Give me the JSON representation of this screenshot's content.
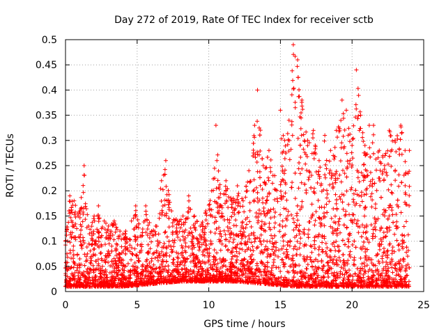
{
  "chart_data": {
    "type": "scatter",
    "title": "Day 272 of 2019, Rate Of TEC Index for receiver sctb",
    "xlabel": "GPS time / hours",
    "ylabel": "ROTI / TECUs",
    "xlim": [
      0,
      25
    ],
    "ylim": [
      0,
      0.5
    ],
    "xticks": [
      0,
      5,
      10,
      15,
      20,
      25
    ],
    "xtick_labels": [
      "0",
      "5",
      "10",
      "15",
      "20",
      "25"
    ],
    "yticks": [
      0,
      0.05,
      0.1,
      0.15,
      0.2,
      0.25,
      0.3,
      0.35,
      0.4,
      0.45,
      0.5
    ],
    "ytick_labels": [
      "0",
      "0.05",
      "0.1",
      "0.15",
      "0.2",
      "0.25",
      "0.3",
      "0.35",
      "0.4",
      "0.45",
      "0.5"
    ],
    "grid": true,
    "marker": "+",
    "marker_color": "#ff0000",
    "series": [
      {
        "name": "ROTI",
        "envelope_note": "approximate upper envelope of the point cloud (hour, ROTI)",
        "envelope": [
          [
            0.0,
            0.1
          ],
          [
            0.3,
            0.19
          ],
          [
            0.6,
            0.18
          ],
          [
            1.0,
            0.16
          ],
          [
            1.3,
            0.25
          ],
          [
            1.6,
            0.13
          ],
          [
            2.0,
            0.15
          ],
          [
            2.3,
            0.17
          ],
          [
            2.7,
            0.14
          ],
          [
            3.0,
            0.13
          ],
          [
            3.4,
            0.14
          ],
          [
            3.8,
            0.12
          ],
          [
            4.2,
            0.12
          ],
          [
            4.6,
            0.14
          ],
          [
            4.9,
            0.17
          ],
          [
            5.3,
            0.11
          ],
          [
            5.6,
            0.17
          ],
          [
            6.0,
            0.12
          ],
          [
            6.3,
            0.13
          ],
          [
            6.7,
            0.22
          ],
          [
            7.0,
            0.26
          ],
          [
            7.4,
            0.16
          ],
          [
            7.8,
            0.14
          ],
          [
            8.2,
            0.15
          ],
          [
            8.6,
            0.19
          ],
          [
            9.0,
            0.15
          ],
          [
            9.4,
            0.13
          ],
          [
            9.8,
            0.16
          ],
          [
            10.2,
            0.2
          ],
          [
            10.5,
            0.33
          ],
          [
            10.9,
            0.17
          ],
          [
            11.2,
            0.22
          ],
          [
            11.6,
            0.18
          ],
          [
            12.0,
            0.21
          ],
          [
            12.4,
            0.18
          ],
          [
            12.8,
            0.24
          ],
          [
            13.2,
            0.33
          ],
          [
            13.4,
            0.4
          ],
          [
            13.8,
            0.25
          ],
          [
            14.2,
            0.28
          ],
          [
            14.6,
            0.23
          ],
          [
            15.0,
            0.36
          ],
          [
            15.3,
            0.3
          ],
          [
            15.6,
            0.34
          ],
          [
            15.9,
            0.49
          ],
          [
            16.2,
            0.46
          ],
          [
            16.5,
            0.38
          ],
          [
            16.9,
            0.3
          ],
          [
            17.3,
            0.32
          ],
          [
            17.7,
            0.26
          ],
          [
            18.1,
            0.31
          ],
          [
            18.5,
            0.28
          ],
          [
            18.9,
            0.32
          ],
          [
            19.3,
            0.38
          ],
          [
            19.6,
            0.36
          ],
          [
            20.0,
            0.29
          ],
          [
            20.3,
            0.44
          ],
          [
            20.6,
            0.35
          ],
          [
            20.9,
            0.29
          ],
          [
            21.2,
            0.33
          ],
          [
            21.5,
            0.33
          ],
          [
            21.9,
            0.28
          ],
          [
            22.3,
            0.27
          ],
          [
            22.6,
            0.32
          ],
          [
            23.0,
            0.3
          ],
          [
            23.4,
            0.33
          ],
          [
            23.7,
            0.28
          ],
          [
            24.0,
            0.28
          ]
        ],
        "baseline_note": "dense cloud lower bound (hour, ROTI)",
        "baseline": [
          [
            0.0,
            0.01
          ],
          [
            4.0,
            0.01
          ],
          [
            8.0,
            0.02
          ],
          [
            12.0,
            0.02
          ],
          [
            16.0,
            0.01
          ],
          [
            20.0,
            0.01
          ],
          [
            24.0,
            0.01
          ]
        ]
      }
    ]
  }
}
